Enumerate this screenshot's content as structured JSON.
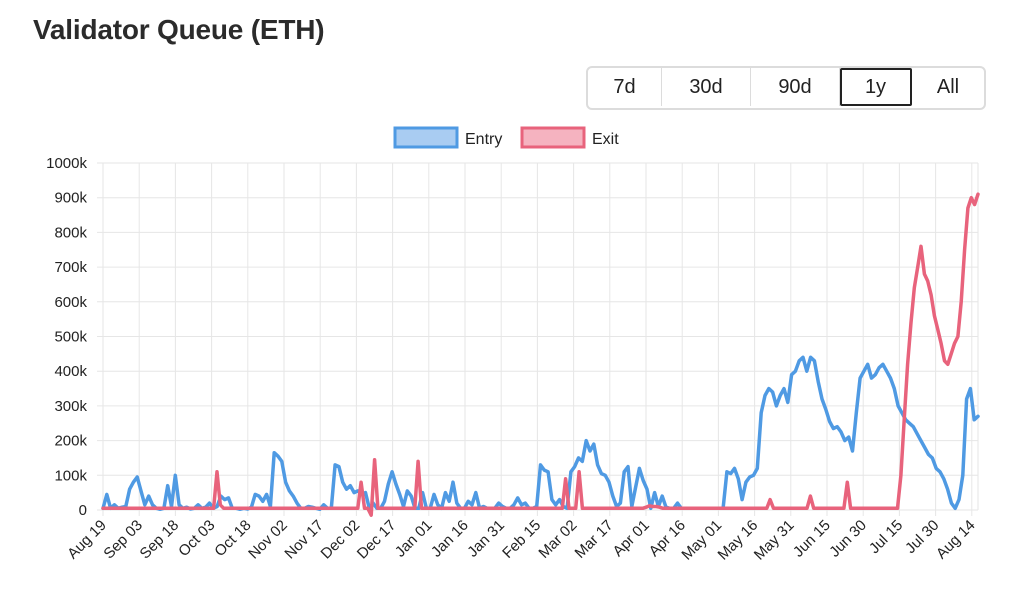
{
  "header": {
    "title": "Validator Queue (ETH)"
  },
  "range_buttons": [
    {
      "label": "7d",
      "active": false
    },
    {
      "label": "30d",
      "active": false
    },
    {
      "label": "90d",
      "active": false
    },
    {
      "label": "1y",
      "active": true
    },
    {
      "label": "All",
      "active": false
    }
  ],
  "chart_data": {
    "type": "line",
    "title": "",
    "xlabel": "",
    "ylabel": "",
    "ylim": [
      0,
      1000000
    ],
    "yticks": [
      0,
      100000,
      200000,
      300000,
      400000,
      500000,
      600000,
      700000,
      800000,
      900000,
      1000000
    ],
    "ytick_labels": [
      "0",
      "100k",
      "200k",
      "300k",
      "400k",
      "500k",
      "600k",
      "700k",
      "800k",
      "900k",
      "1000k"
    ],
    "xticks": [
      "Aug 19",
      "Sep 03",
      "Sep 18",
      "Oct 03",
      "Oct 18",
      "Nov 02",
      "Nov 17",
      "Dec 02",
      "Dec 17",
      "Jan 01",
      "Jan 16",
      "Jan 31",
      "Feb 15",
      "Mar 02",
      "Mar 17",
      "Apr 01",
      "Apr 16",
      "May 01",
      "May 16",
      "May 31",
      "Jun 15",
      "Jun 30",
      "Jul 15",
      "Jul 30",
      "Aug 14"
    ],
    "x_start": "Aug 19",
    "grid": true,
    "legend_position": "top-center",
    "series": [
      {
        "name": "Entry",
        "color": "#4f9ae3",
        "values": [
          5000,
          45000,
          5000,
          15000,
          5000,
          8000,
          10000,
          60000,
          80000,
          95000,
          55000,
          15000,
          40000,
          15000,
          5000,
          2000,
          5000,
          70000,
          10000,
          100000,
          15000,
          5000,
          8000,
          3000,
          5000,
          15000,
          5000,
          8000,
          20000,
          5000,
          10000,
          40000,
          30000,
          35000,
          5000,
          5000,
          2000,
          5000,
          3000,
          8000,
          45000,
          40000,
          25000,
          45000,
          10000,
          165000,
          155000,
          140000,
          80000,
          55000,
          40000,
          20000,
          5000,
          5000,
          10000,
          8000,
          5000,
          2000,
          15000,
          5000,
          5000,
          130000,
          125000,
          80000,
          60000,
          70000,
          50000,
          55000,
          45000,
          50000,
          5000,
          20000,
          5000,
          5000,
          25000,
          75000,
          110000,
          75000,
          45000,
          10000,
          55000,
          40000,
          5000,
          5000,
          50000,
          5000,
          5000,
          45000,
          15000,
          5000,
          50000,
          25000,
          80000,
          20000,
          5000,
          5000,
          25000,
          15000,
          50000,
          5000,
          10000,
          5000,
          5000,
          5000,
          20000,
          10000,
          5000,
          5000,
          15000,
          35000,
          15000,
          20000,
          5000,
          5000,
          10000,
          130000,
          115000,
          110000,
          30000,
          15000,
          30000,
          10000,
          5000,
          110000,
          125000,
          150000,
          140000,
          200000,
          170000,
          190000,
          130000,
          105000,
          100000,
          80000,
          40000,
          10000,
          20000,
          110000,
          125000,
          10000,
          65000,
          120000,
          85000,
          60000,
          5000,
          50000,
          10000,
          40000,
          8000,
          5000,
          5000,
          20000,
          5000,
          5000,
          5000,
          5000,
          5000,
          5000,
          5000,
          5000,
          5000,
          5000,
          5000,
          5000,
          110000,
          105000,
          120000,
          90000,
          30000,
          80000,
          95000,
          100000,
          120000,
          280000,
          330000,
          350000,
          340000,
          300000,
          330000,
          350000,
          310000,
          390000,
          400000,
          430000,
          440000,
          400000,
          440000,
          430000,
          370000,
          320000,
          290000,
          255000,
          235000,
          240000,
          225000,
          200000,
          210000,
          170000,
          280000,
          380000,
          400000,
          420000,
          380000,
          390000,
          410000,
          420000,
          400000,
          380000,
          350000,
          300000,
          280000,
          260000,
          250000,
          240000,
          220000,
          200000,
          180000,
          160000,
          150000,
          120000,
          110000,
          90000,
          60000,
          20000,
          5000,
          30000,
          100000,
          320000,
          350000,
          260000,
          270000
        ]
      },
      {
        "name": "Exit",
        "color": "#e8637c",
        "values": [
          5000,
          5000,
          5000,
          5000,
          5000,
          5000,
          5000,
          5000,
          5000,
          5000,
          5000,
          5000,
          5000,
          5000,
          5000,
          5000,
          5000,
          5000,
          5000,
          5000,
          5000,
          5000,
          5000,
          5000,
          5000,
          5000,
          5000,
          5000,
          5000,
          5000,
          5000,
          5000,
          5000,
          5000,
          110000,
          15000,
          5000,
          5000,
          5000,
          5000,
          5000,
          5000,
          5000,
          5000,
          5000,
          5000,
          5000,
          5000,
          5000,
          5000,
          5000,
          5000,
          5000,
          5000,
          5000,
          5000,
          5000,
          5000,
          5000,
          5000,
          5000,
          5000,
          5000,
          5000,
          5000,
          5000,
          5000,
          5000,
          5000,
          5000,
          5000,
          5000,
          5000,
          5000,
          5000,
          5000,
          5000,
          80000,
          5000,
          5000,
          -15000,
          145000,
          5000,
          5000,
          5000,
          5000,
          5000,
          5000,
          5000,
          5000,
          5000,
          5000,
          5000,
          5000,
          140000,
          5000,
          5000,
          5000,
          5000,
          5000,
          5000,
          5000,
          5000,
          5000,
          5000,
          5000,
          5000,
          5000,
          5000,
          5000,
          5000,
          5000,
          5000,
          5000,
          5000,
          5000,
          5000,
          5000,
          5000,
          5000,
          5000,
          5000,
          5000,
          5000,
          5000,
          5000,
          5000,
          5000,
          5000,
          5000,
          5000,
          5000,
          5000,
          5000,
          5000,
          5000,
          5000,
          5000,
          90000,
          5000,
          5000,
          5000,
          110000,
          5000,
          5000,
          5000,
          5000,
          5000,
          5000,
          5000,
          5000,
          5000,
          5000,
          5000,
          5000,
          5000,
          5000,
          5000,
          5000,
          5000,
          5000,
          5000,
          8000,
          12000,
          10000,
          10000,
          8000,
          5000,
          5000,
          5000,
          5000,
          5000,
          5000,
          5000,
          5000,
          5000,
          5000,
          5000,
          5000,
          5000,
          5000,
          5000,
          5000,
          5000,
          5000,
          5000,
          5000,
          5000,
          5000,
          5000,
          5000,
          5000,
          5000,
          5000,
          5000,
          5000,
          5000,
          5000,
          5000,
          30000,
          5000,
          5000,
          5000,
          5000,
          5000,
          5000,
          5000,
          5000,
          5000,
          5000,
          5000,
          40000,
          5000,
          5000,
          5000,
          5000,
          5000,
          5000,
          5000,
          5000,
          5000,
          5000,
          80000,
          5000,
          5000,
          5000,
          5000,
          5000,
          5000,
          5000,
          5000,
          5000,
          5000,
          5000,
          5000,
          5000,
          5000,
          5000,
          100000,
          260000,
          420000,
          540000,
          640000,
          700000,
          760000,
          680000,
          660000,
          620000,
          560000,
          520000,
          480000,
          430000,
          420000,
          450000,
          480000,
          500000,
          600000,
          750000,
          870000,
          900000,
          880000,
          910000
        ]
      }
    ]
  }
}
